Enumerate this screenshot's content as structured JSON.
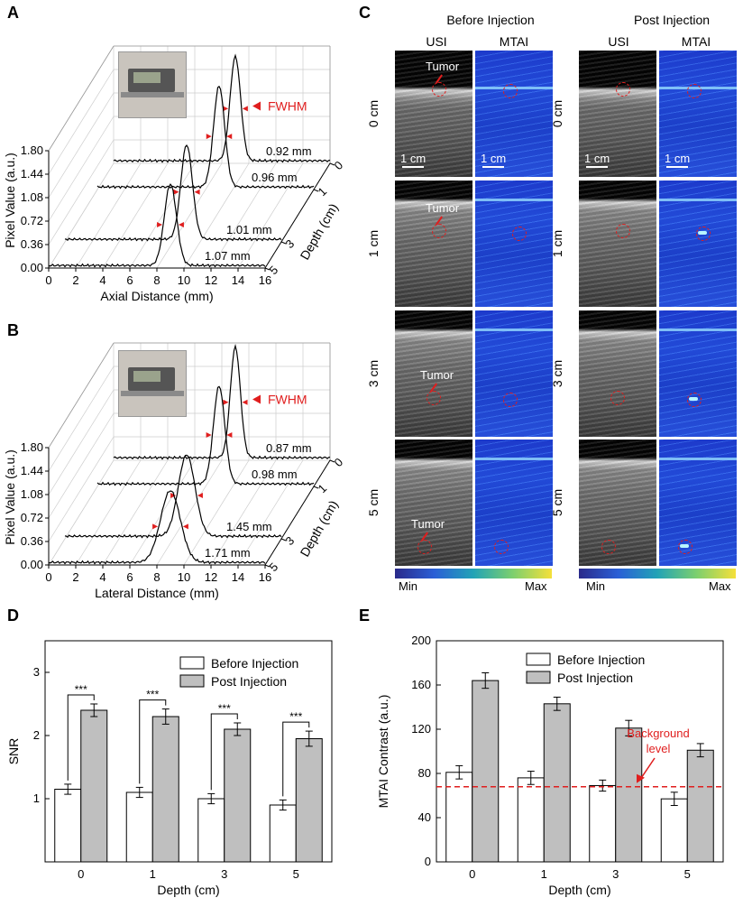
{
  "panels": {
    "A": "A",
    "B": "B",
    "C": "C",
    "D": "D",
    "E": "E"
  },
  "colors": {
    "red": "#e01e1e",
    "bar_before": "#ffffff",
    "bar_post": "#bfbfbf",
    "mtai_bg": "#2244dd",
    "usi_bg": "#222222"
  },
  "chart_data": [
    {
      "id": "A",
      "type": "line",
      "xlabel": "Axial Distance (mm)",
      "ylabel": "Pixel Value (a.u.)",
      "zlabel": "Depth (cm)",
      "xticks": [
        "0",
        "2",
        "4",
        "6",
        "8",
        "10",
        "12",
        "14",
        "16"
      ],
      "yticks": [
        "0.00",
        "0.36",
        "0.72",
        "1.08",
        "1.44",
        "1.80"
      ],
      "depth_ticks": [
        "0",
        "1",
        "3",
        "5"
      ],
      "xlim": [
        0,
        16
      ],
      "ylim": [
        0,
        1.8
      ],
      "annotation": "FWHM",
      "series": [
        {
          "depth": "0",
          "fwhm": "0.92 mm",
          "peak_x": 9.0,
          "peak_y": 1.6
        },
        {
          "depth": "1",
          "fwhm": "0.96 mm",
          "peak_x": 9.0,
          "peak_y": 1.55
        },
        {
          "depth": "3",
          "fwhm": "1.01 mm",
          "peak_x": 9.0,
          "peak_y": 1.45
        },
        {
          "depth": "5",
          "fwhm": "1.07 mm",
          "peak_x": 9.0,
          "peak_y": 1.25
        }
      ]
    },
    {
      "id": "B",
      "type": "line",
      "xlabel": "Lateral Distance (mm)",
      "ylabel": "Pixel Value (a.u.)",
      "zlabel": "Depth (cm)",
      "xticks": [
        "0",
        "2",
        "4",
        "6",
        "8",
        "10",
        "12",
        "14",
        "16"
      ],
      "yticks": [
        "0.00",
        "0.36",
        "0.72",
        "1.08",
        "1.44",
        "1.80"
      ],
      "depth_ticks": [
        "0",
        "1",
        "3",
        "5"
      ],
      "xlim": [
        0,
        16
      ],
      "ylim": [
        0,
        1.8
      ],
      "annotation": "FWHM",
      "series": [
        {
          "depth": "0",
          "fwhm": "0.87 mm",
          "peak_x": 9.0,
          "peak_y": 1.7
        },
        {
          "depth": "1",
          "fwhm": "0.98 mm",
          "peak_x": 9.0,
          "peak_y": 1.5
        },
        {
          "depth": "3",
          "fwhm": "1.45 mm",
          "peak_x": 9.0,
          "peak_y": 1.25
        },
        {
          "depth": "5",
          "fwhm": "1.71 mm",
          "peak_x": 9.0,
          "peak_y": 1.1
        }
      ]
    },
    {
      "id": "D",
      "type": "bar",
      "xlabel": "Depth (cm)",
      "ylabel": "SNR",
      "categories": [
        "0",
        "1",
        "3",
        "5"
      ],
      "ylim": [
        0,
        3.5
      ],
      "yticks": [
        "1",
        "2",
        "3"
      ],
      "legend_position": "top-right",
      "significance": "***",
      "series": [
        {
          "name": "Before Injection",
          "values": [
            1.15,
            1.1,
            1.0,
            0.9
          ],
          "errors": [
            0.08,
            0.08,
            0.08,
            0.08
          ]
        },
        {
          "name": "Post Injection",
          "values": [
            2.4,
            2.3,
            2.1,
            1.95
          ],
          "errors": [
            0.1,
            0.12,
            0.1,
            0.12
          ]
        }
      ]
    },
    {
      "id": "E",
      "type": "bar",
      "xlabel": "Depth (cm)",
      "ylabel": "MTAI Contrast (a.u.)",
      "categories": [
        "0",
        "1",
        "3",
        "5"
      ],
      "ylim": [
        0,
        200
      ],
      "yticks": [
        "0",
        "40",
        "80",
        "120",
        "160",
        "200"
      ],
      "legend_position": "top-left",
      "background_level": 68,
      "background_label": "Background level",
      "series": [
        {
          "name": "Before Injection",
          "values": [
            81,
            76,
            69,
            57
          ],
          "errors": [
            6,
            6,
            5,
            6
          ]
        },
        {
          "name": "Post Injection",
          "values": [
            164,
            143,
            121,
            101
          ],
          "errors": [
            7,
            6,
            7,
            6
          ]
        }
      ]
    }
  ],
  "panel_c": {
    "groups": [
      "Before Injection",
      "Post Injection"
    ],
    "columns": [
      "USI",
      "MTAI"
    ],
    "rows": [
      "0 cm",
      "1 cm",
      "3 cm",
      "5 cm"
    ],
    "tumor_label": "Tumor",
    "scale_bar": "1 cm",
    "colorbar_min": "Min",
    "colorbar_max": "Max"
  }
}
